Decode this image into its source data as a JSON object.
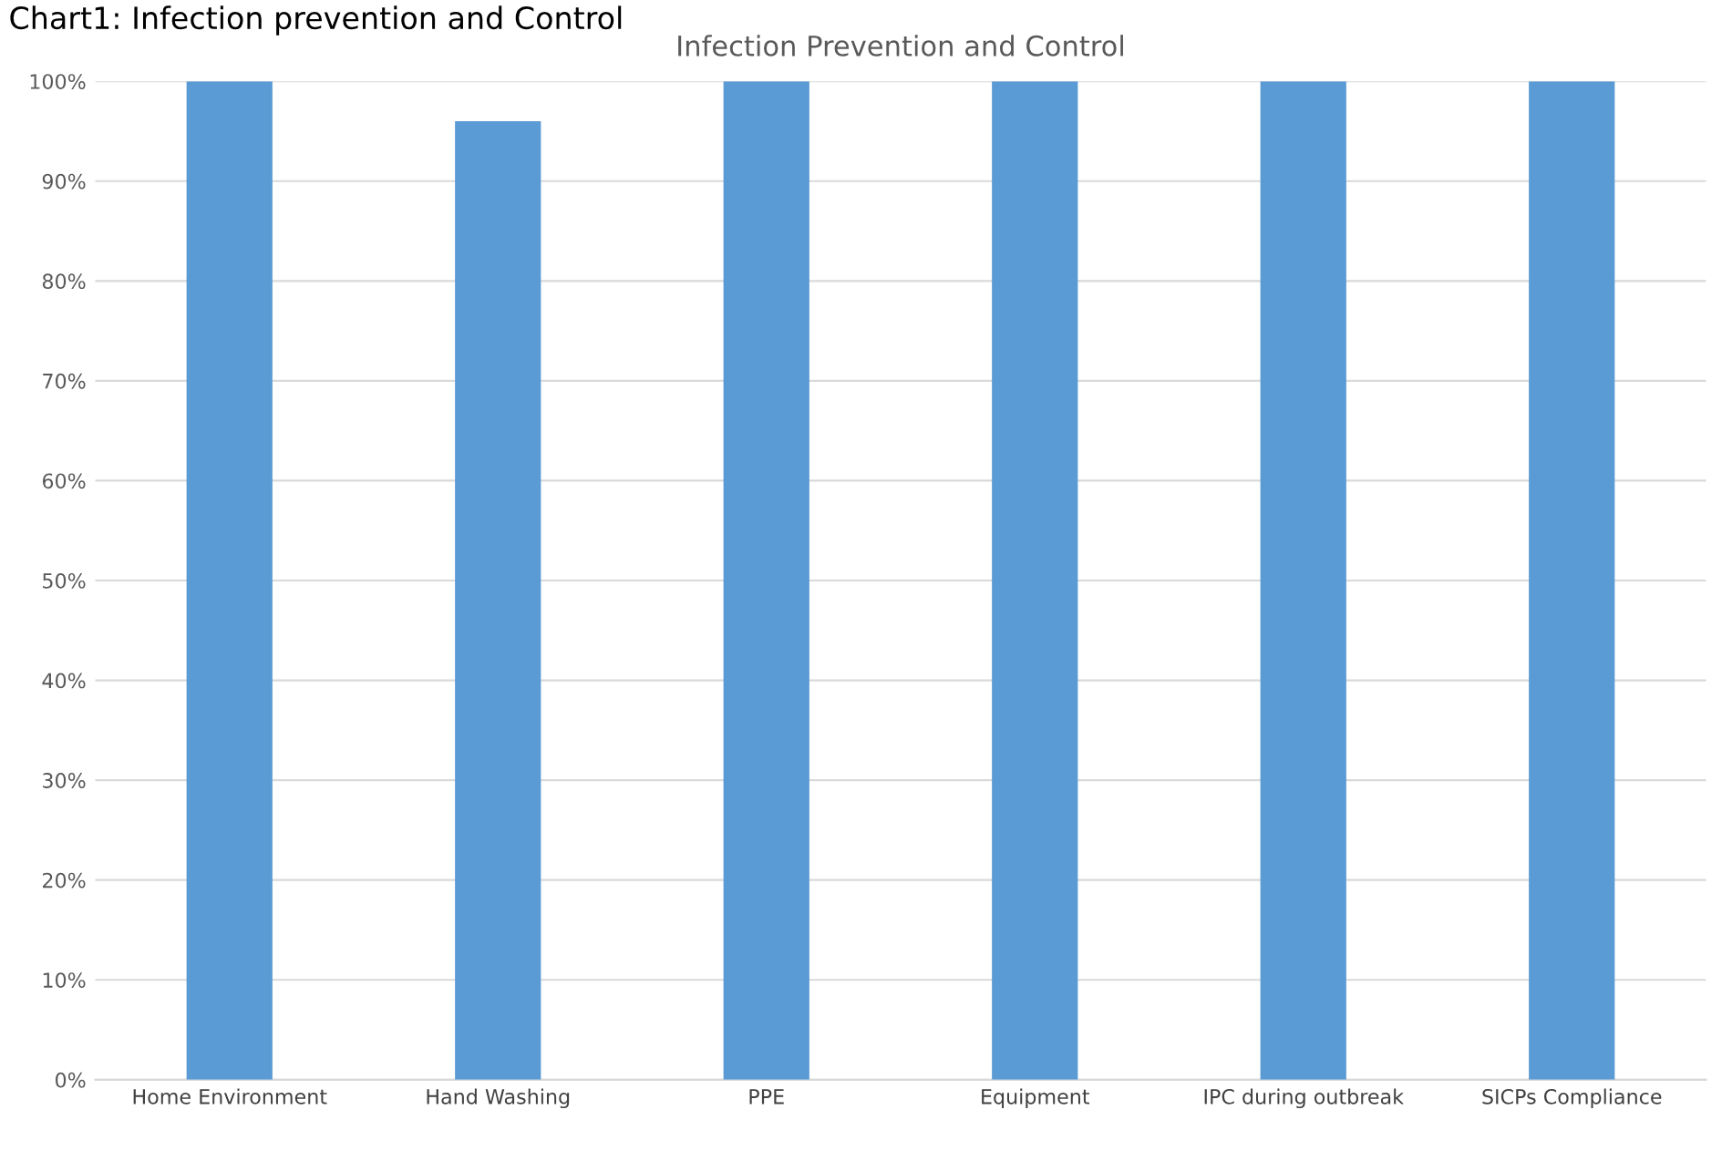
{
  "chart_data": {
    "type": "bar",
    "title": "Infection Prevention and Control",
    "annotations": [
      "Chart1: Infection prevention and Control"
    ],
    "categories": [
      "Home Environment",
      "Hand Washing",
      "PPE",
      "Equipment",
      "IPC during outbreak",
      "SICPs Compliance"
    ],
    "values": [
      100,
      96,
      100,
      100,
      100,
      100
    ],
    "color": "#5b9bd5",
    "ylim": [
      0,
      100
    ],
    "yticks": [
      {
        "value": 0,
        "label": "0%"
      },
      {
        "value": 10,
        "label": "10%"
      },
      {
        "value": 20,
        "label": "20%"
      },
      {
        "value": 30,
        "label": "30%"
      },
      {
        "value": 40,
        "label": "40%"
      },
      {
        "value": 50,
        "label": "50%"
      },
      {
        "value": 60,
        "label": "60%"
      },
      {
        "value": 70,
        "label": "70%"
      },
      {
        "value": 80,
        "label": "80%"
      },
      {
        "value": 90,
        "label": "90%"
      },
      {
        "value": 100,
        "label": "100%"
      }
    ],
    "grid": "y",
    "legend": false
  }
}
